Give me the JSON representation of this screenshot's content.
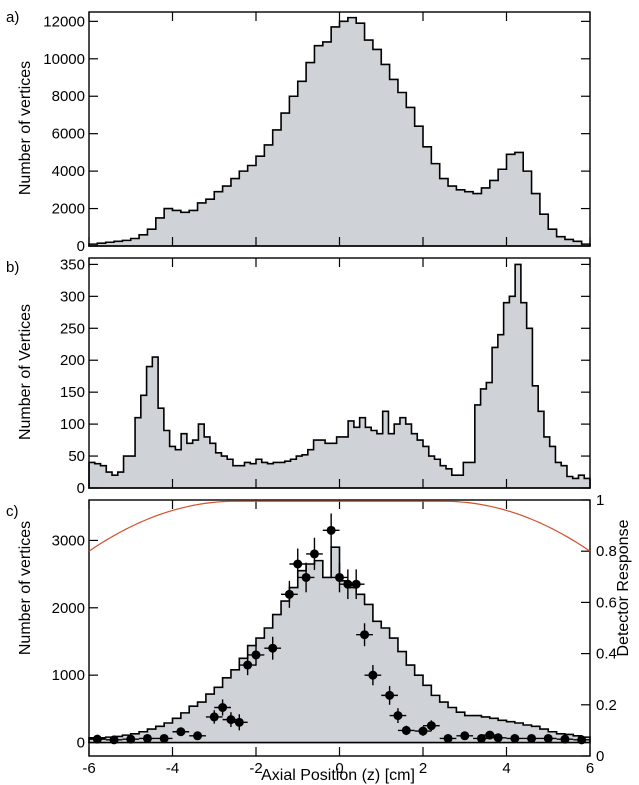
{
  "style": {
    "fill_color": "#cfd3d8",
    "line_color": "#000000",
    "response_color": "#d2502a"
  },
  "chart_data": [
    {
      "type": "histogram",
      "panel_label": "a)",
      "ylabel": "Number of vertices",
      "xlim": [
        -6,
        6
      ],
      "ylim": [
        0,
        12500
      ],
      "yticks": [
        0,
        2000,
        4000,
        6000,
        8000,
        10000,
        12000
      ],
      "ytick_labels": [
        "0",
        "2000",
        "4000",
        "6000",
        "8000",
        "10000",
        "12000"
      ],
      "xticks": [
        -6,
        -4,
        -2,
        0,
        2,
        4,
        6
      ],
      "bin_edges_start": -6,
      "bin_width": 0.2,
      "values": [
        100,
        150,
        200,
        250,
        300,
        400,
        600,
        900,
        1500,
        2000,
        1900,
        1800,
        1900,
        2300,
        2500,
        2900,
        3200,
        3600,
        4000,
        4300,
        4800,
        5400,
        6200,
        7100,
        8000,
        8800,
        9800,
        10700,
        10900,
        11700,
        12000,
        12200,
        11900,
        11000,
        10500,
        9700,
        8900,
        8200,
        7400,
        6400,
        5300,
        4400,
        3600,
        3200,
        3000,
        2900,
        2800,
        3100,
        3500,
        4100,
        4900,
        5000,
        4000,
        2800,
        1700,
        900,
        500,
        350,
        250,
        100
      ]
    },
    {
      "type": "histogram",
      "panel_label": "b)",
      "ylabel": "Number of Vertices",
      "xlim": [
        -6,
        6
      ],
      "ylim": [
        0,
        360
      ],
      "yticks": [
        0,
        50,
        100,
        150,
        200,
        250,
        300,
        350
      ],
      "ytick_labels": [
        "0",
        "50",
        "100",
        "150",
        "200",
        "250",
        "300",
        "350"
      ],
      "xticks": [
        -6,
        -4,
        -2,
        0,
        2,
        4,
        6
      ],
      "bin_edges_start": -6,
      "bin_width": 0.2,
      "values": [
        40,
        38,
        35,
        25,
        20,
        25,
        50,
        50,
        110,
        145,
        190,
        205,
        125,
        90,
        65,
        60,
        85,
        70,
        75,
        100,
        80,
        70,
        55,
        50,
        45,
        35,
        35,
        40,
        38,
        45,
        40,
        38,
        40,
        40,
        42,
        45,
        50,
        52,
        60,
        75,
        75,
        70,
        70,
        80,
        80,
        105,
        95,
        110,
        95,
        90,
        85,
        120,
        85,
        100,
        110,
        100,
        85,
        75,
        65,
        50,
        45,
        35,
        30,
        20,
        20,
        40,
        40,
        130,
        155,
        165,
        220,
        240,
        290,
        300,
        350,
        290,
        250,
        160,
        120,
        80,
        65,
        40,
        35,
        18,
        15,
        20,
        15
      ]
    },
    {
      "type": "histogram+points",
      "panel_label": "c)",
      "ylabel": "Number of vertices",
      "y2label": "Detector Response",
      "xlabel": "Axial Position (z) [cm]",
      "xlim": [
        -6,
        6
      ],
      "ylim": [
        -200,
        3600
      ],
      "yticks": [
        0,
        1000,
        2000,
        3000
      ],
      "ytick_labels": [
        "0",
        "1000",
        "2000",
        "3000"
      ],
      "y2lim": [
        0,
        1
      ],
      "y2ticks": [
        0,
        0.2,
        0.4,
        0.6,
        0.8,
        1
      ],
      "y2tick_labels": [
        "0",
        "0.2",
        "0.4",
        "0.6",
        "0.8",
        "1"
      ],
      "xticks": [
        -6,
        -4,
        -2,
        0,
        2,
        4,
        6
      ],
      "xtick_labels": [
        "-6",
        "-4",
        "-2",
        "0",
        "2",
        "4",
        "6"
      ],
      "bin_edges_start": -6,
      "bin_width": 0.2,
      "values": [
        70,
        70,
        80,
        90,
        110,
        130,
        160,
        200,
        240,
        290,
        360,
        440,
        540,
        600,
        720,
        820,
        960,
        1080,
        1250,
        1440,
        1550,
        1700,
        1900,
        2100,
        2300,
        2550,
        2650,
        2700,
        2450,
        2900,
        2400,
        2300,
        2200,
        2050,
        1800,
        1700,
        1550,
        1350,
        1150,
        1000,
        850,
        700,
        600,
        520,
        450,
        400,
        400,
        380,
        360,
        330,
        310,
        290,
        260,
        240,
        200,
        160,
        130,
        120,
        100,
        80
      ],
      "points": {
        "x": [
          -5.8,
          -5.4,
          -5.0,
          -4.6,
          -4.2,
          -3.8,
          -3.4,
          -3.0,
          -2.8,
          -2.6,
          -2.4,
          -2.2,
          -2.0,
          -1.6,
          -1.2,
          -1.0,
          -0.8,
          -0.6,
          -0.2,
          0.0,
          0.2,
          0.4,
          0.6,
          0.8,
          1.2,
          1.4,
          1.6,
          2.0,
          2.2,
          2.6,
          3.0,
          3.4,
          3.6,
          3.8,
          4.2,
          4.6,
          5.0,
          5.4,
          5.8
        ],
        "y": [
          50,
          40,
          50,
          60,
          60,
          160,
          100,
          380,
          520,
          340,
          300,
          1150,
          1300,
          1400,
          2200,
          2650,
          2450,
          2800,
          3150,
          2450,
          2350,
          2350,
          1600,
          1000,
          700,
          400,
          180,
          170,
          250,
          60,
          100,
          60,
          110,
          70,
          60,
          60,
          60,
          50,
          40
        ],
        "yerr": [
          30,
          30,
          30,
          30,
          30,
          60,
          50,
          100,
          120,
          110,
          120,
          150,
          160,
          170,
          200,
          230,
          220,
          240,
          250,
          220,
          220,
          220,
          170,
          150,
          140,
          110,
          70,
          70,
          80,
          40,
          50,
          40,
          50,
          40,
          40,
          40,
          40,
          30,
          30
        ],
        "xerr": [
          0.2,
          0.2,
          0.2,
          0.2,
          0.2,
          0.2,
          0.2,
          0.2,
          0.2,
          0.2,
          0.2,
          0.2,
          0.2,
          0.2,
          0.2,
          0.2,
          0.2,
          0.2,
          0.2,
          0.2,
          0.2,
          0.2,
          0.2,
          0.2,
          0.2,
          0.2,
          0.2,
          0.2,
          0.2,
          0.2,
          0.2,
          0.2,
          0.2,
          0.2,
          0.2,
          0.2,
          0.2,
          0.2,
          0.2
        ]
      },
      "response_curve": {
        "plateau": 0.995,
        "edge_value": 0.8,
        "plateau_start": -2.5,
        "plateau_end": 2.5
      }
    }
  ]
}
